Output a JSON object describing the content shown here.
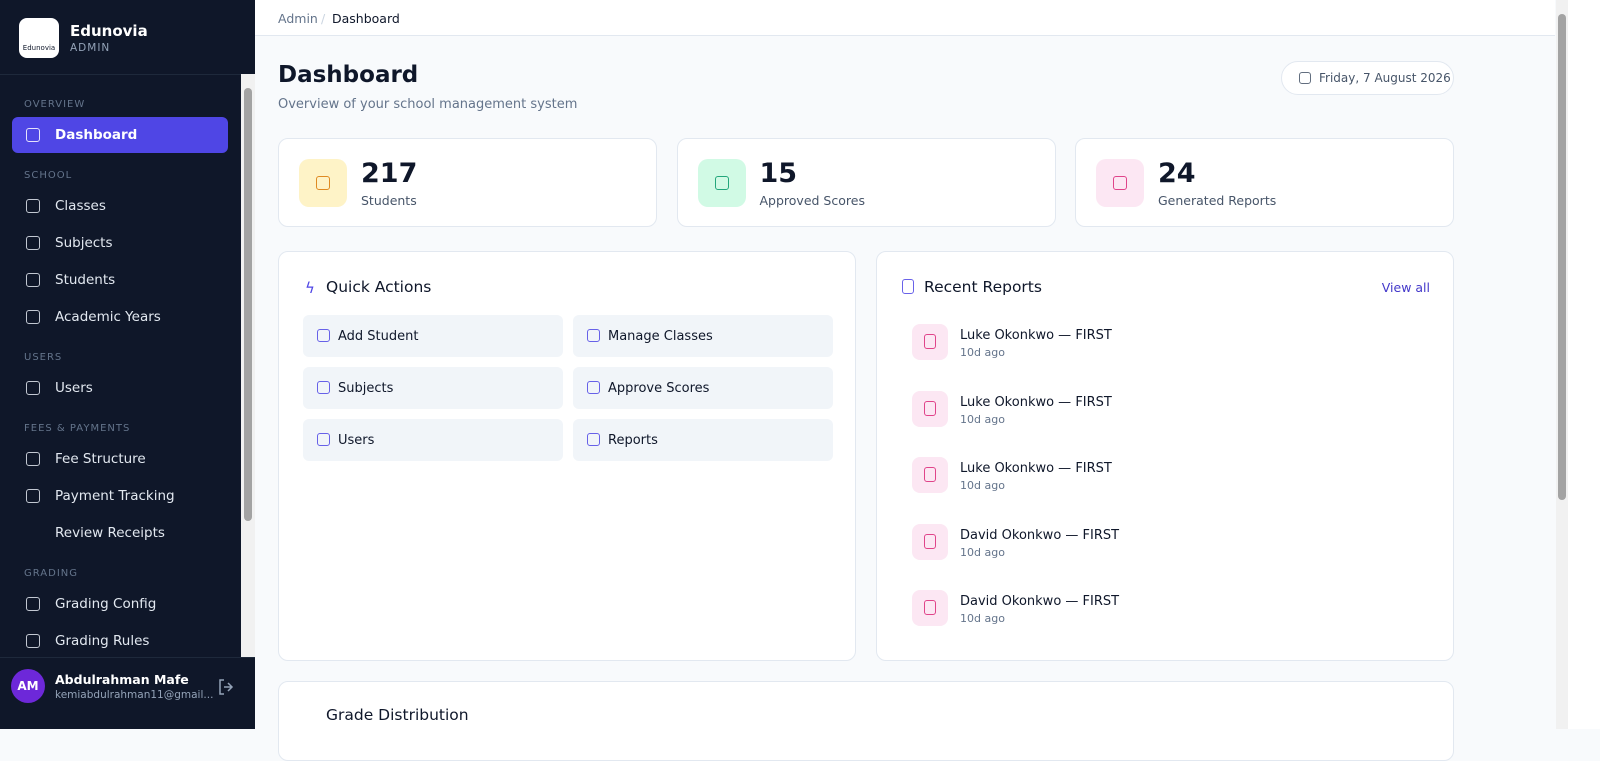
{
  "sidebar": {
    "brand": {
      "logo_text": "Edunovia",
      "name": "Edunovia",
      "role": "ADMIN"
    },
    "sections": [
      {
        "title": "OVERVIEW",
        "items": [
          "Dashboard"
        ]
      },
      {
        "title": "SCHOOL",
        "items": [
          "Classes",
          "Subjects",
          "Students",
          "Academic Years"
        ]
      },
      {
        "title": "USERS",
        "items": [
          "Users"
        ]
      },
      {
        "title": "FEES & PAYMENTS",
        "items": [
          "Fee Structure",
          "Payment Tracking",
          "Review Receipts"
        ]
      },
      {
        "title": "GRADING",
        "items": [
          "Grading Config",
          "Grading Rules"
        ]
      }
    ],
    "user": {
      "initials": "AM",
      "name": "Abdulrahman Mafe",
      "email": "kemiabdulrahman11@gmail..."
    }
  },
  "breadcrumb": [
    "Admin",
    "Dashboard"
  ],
  "header": {
    "title": "Dashboard",
    "subtitle": "Overview of your school management system",
    "date": "Friday, 7 August 2026"
  },
  "stats": [
    {
      "value": 217,
      "label": "Students"
    },
    {
      "value": 15,
      "label": "Approved Scores"
    },
    {
      "value": 24,
      "label": "Generated Reports"
    }
  ],
  "quick_actions": {
    "title": "Quick Actions",
    "items": [
      "Add Student",
      "Manage Classes",
      "Subjects",
      "Approve Scores",
      "Users",
      "Reports"
    ]
  },
  "recent_reports": {
    "title": "Recent Reports",
    "link": "View all",
    "items": [
      {
        "name": "Luke Okonkwo — FIRST",
        "time": "10d ago"
      },
      {
        "name": "Luke Okonkwo — FIRST",
        "time": "10d ago"
      },
      {
        "name": "Luke Okonkwo — FIRST",
        "time": "10d ago"
      },
      {
        "name": "David Okonkwo — FIRST",
        "time": "10d ago"
      },
      {
        "name": "David Okonkwo — FIRST",
        "time": "10d ago"
      }
    ]
  },
  "bottom_card": {
    "title": "Grade Distribution"
  }
}
